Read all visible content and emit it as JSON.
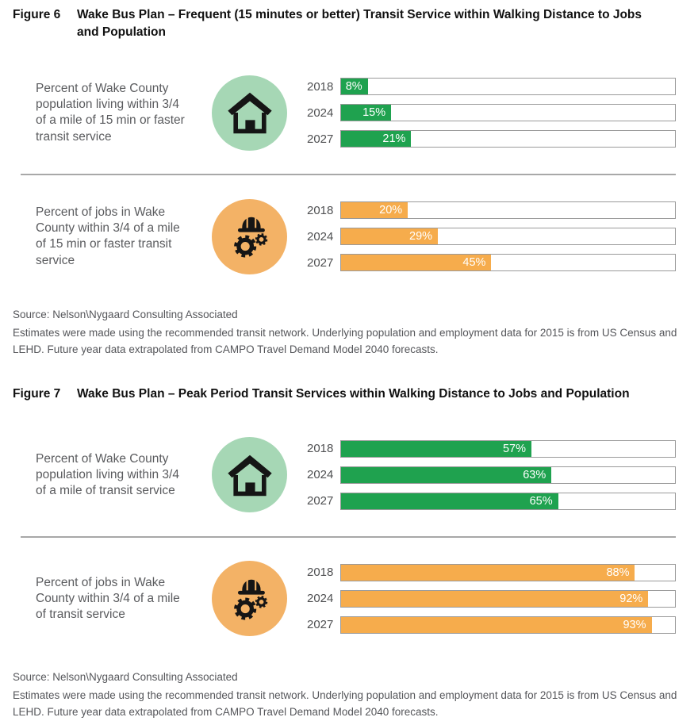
{
  "figures": [
    {
      "label": "Figure 6",
      "title": "Wake Bus Plan – Frequent (15 minutes or better) Transit Service within Walking Distance to Jobs and Population",
      "source": "Source: Nelson\\Nygaard Consulting Associated",
      "note": "Estimates were made using the recommended transit network. Underlying population and employment data for 2015 is from US Census and LEHD. Future year data extrapolated from CAMPO Travel Demand Model 2040 forecasts.",
      "sections": [
        {
          "description": "Percent of Wake County population living within 3/4 of a mile of 15 min or faster transit service",
          "icon": "house-icon",
          "bar_color": "#1fa24f",
          "circle_color": "#a6d7b5",
          "bars": [
            {
              "year": "2018",
              "value": 8,
              "label": "8%"
            },
            {
              "year": "2024",
              "value": 15,
              "label": "15%"
            },
            {
              "year": "2027",
              "value": 21,
              "label": "21%"
            }
          ]
        },
        {
          "description": "Percent of jobs in Wake County within 3/4 of a mile of 15 min or faster transit service",
          "icon": "hardhat-gears-icon",
          "bar_color": "#f6ac4c",
          "circle_color": "#f3b266",
          "bars": [
            {
              "year": "2018",
              "value": 20,
              "label": "20%"
            },
            {
              "year": "2024",
              "value": 29,
              "label": "29%"
            },
            {
              "year": "2027",
              "value": 45,
              "label": "45%"
            }
          ]
        }
      ]
    },
    {
      "label": "Figure 7",
      "title": "Wake Bus Plan – Peak Period Transit Services within Walking Distance to Jobs and Population",
      "source": "Source: Nelson\\Nygaard Consulting Associated",
      "note": "Estimates were made using the recommended transit network. Underlying population and employment data for 2015 is from US Census and LEHD. Future year data extrapolated from CAMPO Travel Demand Model 2040 forecasts.",
      "sections": [
        {
          "description": "Percent of Wake County population living within 3/4 of a mile of transit service",
          "icon": "house-icon",
          "bar_color": "#1fa24f",
          "circle_color": "#a6d7b5",
          "bars": [
            {
              "year": "2018",
              "value": 57,
              "label": "57%"
            },
            {
              "year": "2024",
              "value": 63,
              "label": "63%"
            },
            {
              "year": "2027",
              "value": 65,
              "label": "65%"
            }
          ]
        },
        {
          "description": "Percent of jobs in Wake County within 3/4 of a mile of transit service",
          "icon": "hardhat-gears-icon",
          "bar_color": "#f6ac4c",
          "circle_color": "#f3b266",
          "bars": [
            {
              "year": "2018",
              "value": 88,
              "label": "88%"
            },
            {
              "year": "2024",
              "value": 92,
              "label": "92%"
            },
            {
              "year": "2027",
              "value": 93,
              "label": "93%"
            }
          ]
        }
      ]
    }
  ],
  "chart_data": [
    {
      "type": "bar",
      "title": "Figure 6  Wake Bus Plan – Frequent (15 minutes or better) Transit Service within Walking Distance to Jobs and Population",
      "categories": [
        "2018",
        "2024",
        "2027"
      ],
      "series": [
        {
          "name": "Percent of Wake County population living within 3/4 of a mile of 15 min or faster transit service",
          "values": [
            8,
            15,
            21
          ],
          "color": "#1fa24f"
        },
        {
          "name": "Percent of jobs in Wake County within 3/4 of a mile of 15 min or faster transit service",
          "values": [
            20,
            29,
            45
          ],
          "color": "#f6ac4c"
        }
      ],
      "xlabel": "",
      "ylabel": "",
      "unit": "%",
      "xlim": [
        0,
        100
      ],
      "orientation": "horizontal",
      "grid": false,
      "legend_position": "left-descriptions",
      "data_labels": "inside-end-white"
    },
    {
      "type": "bar",
      "title": "Figure 7  Wake Bus Plan – Peak Period Transit Services within Walking Distance to Jobs and Population",
      "categories": [
        "2018",
        "2024",
        "2027"
      ],
      "series": [
        {
          "name": "Percent of Wake County population living within 3/4 of a mile of transit service",
          "values": [
            57,
            63,
            65
          ],
          "color": "#1fa24f"
        },
        {
          "name": "Percent of jobs in Wake County within 3/4 of a mile of transit service",
          "values": [
            88,
            92,
            93
          ],
          "color": "#f6ac4c"
        }
      ],
      "xlabel": "",
      "ylabel": "",
      "unit": "%",
      "xlim": [
        0,
        100
      ],
      "orientation": "horizontal",
      "grid": false,
      "legend_position": "left-descriptions",
      "data_labels": "inside-end-white"
    }
  ]
}
